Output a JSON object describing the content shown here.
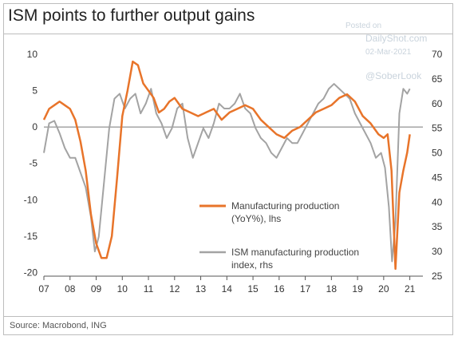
{
  "header": {
    "title": "ISM points to further output gains"
  },
  "footer": {
    "source": "Source: Macrobond, ING"
  },
  "watermark": {
    "posted": "Posted on",
    "site": "DailyShot.com",
    "date": "02-Mar-2021",
    "handle": "@SoberLook"
  },
  "colors": {
    "manufacturing": "#e8742a",
    "ism": "#a3a3a3",
    "zero_line": "#777777"
  },
  "chart_data": {
    "type": "line",
    "title": "ISM points to further output gains",
    "x_ticks": [
      "07",
      "08",
      "09",
      "10",
      "11",
      "12",
      "13",
      "14",
      "15",
      "16",
      "17",
      "18",
      "19",
      "20",
      "21"
    ],
    "x_range": [
      2007,
      2021.5
    ],
    "y_left": {
      "ticks": [
        10,
        5,
        0,
        -5,
        -10,
        -15,
        -20
      ],
      "range": [
        -20.5,
        10
      ]
    },
    "y_right": {
      "ticks": [
        70,
        65,
        60,
        55,
        50,
        45,
        40,
        35,
        30,
        25
      ],
      "range": [
        25,
        70
      ]
    },
    "grid": false,
    "legend_placement": "lower-right",
    "series": [
      {
        "name": "Manufacturing production\n(YoY%), lhs",
        "axis": "left",
        "x": [
          2007.0,
          2007.2,
          2007.4,
          2007.6,
          2007.8,
          2008.0,
          2008.2,
          2008.4,
          2008.6,
          2008.8,
          2009.0,
          2009.2,
          2009.4,
          2009.6,
          2009.8,
          2010.0,
          2010.2,
          2010.4,
          2010.6,
          2010.8,
          2011.0,
          2011.2,
          2011.4,
          2011.6,
          2011.8,
          2012.0,
          2012.3,
          2012.6,
          2012.9,
          2013.2,
          2013.5,
          2013.8,
          2014.1,
          2014.4,
          2014.7,
          2015.0,
          2015.3,
          2015.6,
          2015.9,
          2016.2,
          2016.5,
          2016.8,
          2017.1,
          2017.4,
          2017.7,
          2018.0,
          2018.3,
          2018.6,
          2018.9,
          2019.2,
          2019.5,
          2019.8,
          2020.0,
          2020.15,
          2020.3,
          2020.45,
          2020.6,
          2020.75,
          2020.9,
          2021.0
        ],
        "values": [
          1.0,
          2.5,
          3.0,
          3.5,
          3.0,
          2.5,
          1.0,
          -2.0,
          -6.0,
          -12.0,
          -16.0,
          -18.0,
          -18.0,
          -15.0,
          -7.0,
          1.5,
          5.0,
          9.0,
          8.5,
          6.0,
          5.0,
          4.0,
          2.0,
          2.5,
          3.5,
          4.0,
          2.5,
          2.0,
          1.5,
          2.0,
          2.5,
          1.0,
          2.0,
          2.5,
          3.0,
          2.5,
          1.0,
          0.0,
          -1.0,
          -1.5,
          -0.5,
          0.0,
          1.0,
          2.0,
          2.5,
          3.0,
          4.0,
          4.5,
          3.5,
          1.5,
          0.5,
          -1.0,
          -1.5,
          -1.0,
          -6.0,
          -19.5,
          -9.0,
          -6.0,
          -3.5,
          -1.0
        ]
      },
      {
        "name": "ISM manufacturing production\nindex, rhs",
        "axis": "right",
        "x": [
          2007.0,
          2007.2,
          2007.4,
          2007.6,
          2007.8,
          2008.0,
          2008.2,
          2008.4,
          2008.6,
          2008.8,
          2008.95,
          2009.1,
          2009.3,
          2009.5,
          2009.7,
          2009.9,
          2010.1,
          2010.3,
          2010.5,
          2010.7,
          2010.9,
          2011.1,
          2011.3,
          2011.5,
          2011.7,
          2011.9,
          2012.1,
          2012.3,
          2012.5,
          2012.7,
          2012.9,
          2013.1,
          2013.3,
          2013.5,
          2013.7,
          2013.9,
          2014.1,
          2014.3,
          2014.5,
          2014.7,
          2014.9,
          2015.1,
          2015.3,
          2015.5,
          2015.7,
          2015.9,
          2016.1,
          2016.3,
          2016.5,
          2016.7,
          2016.9,
          2017.1,
          2017.3,
          2017.5,
          2017.7,
          2017.9,
          2018.1,
          2018.3,
          2018.5,
          2018.7,
          2018.9,
          2019.1,
          2019.3,
          2019.5,
          2019.7,
          2019.9,
          2020.05,
          2020.2,
          2020.32,
          2020.45,
          2020.6,
          2020.75,
          2020.9,
          2021.0
        ],
        "values": [
          50.0,
          56.0,
          56.5,
          54.0,
          51.0,
          49.0,
          49.0,
          46.0,
          43.0,
          37.0,
          30.0,
          33.0,
          44.0,
          55.0,
          61.0,
          62.0,
          59.0,
          61.0,
          62.0,
          58.0,
          60.0,
          63.0,
          58.0,
          56.0,
          53.0,
          55.0,
          59.0,
          60.0,
          53.0,
          49.0,
          52.0,
          55.0,
          53.0,
          56.0,
          60.0,
          59.0,
          59.0,
          60.0,
          62.0,
          59.0,
          58.0,
          55.0,
          53.0,
          52.0,
          50.0,
          49.0,
          51.0,
          53.0,
          52.0,
          52.0,
          54.0,
          56.0,
          58.0,
          60.0,
          61.0,
          63.0,
          64.0,
          63.0,
          62.0,
          61.0,
          58.0,
          56.0,
          54.0,
          52.0,
          49.0,
          50.0,
          47.0,
          39.0,
          28.0,
          36.0,
          58.0,
          63.0,
          62.0,
          63.0
        ]
      }
    ]
  }
}
